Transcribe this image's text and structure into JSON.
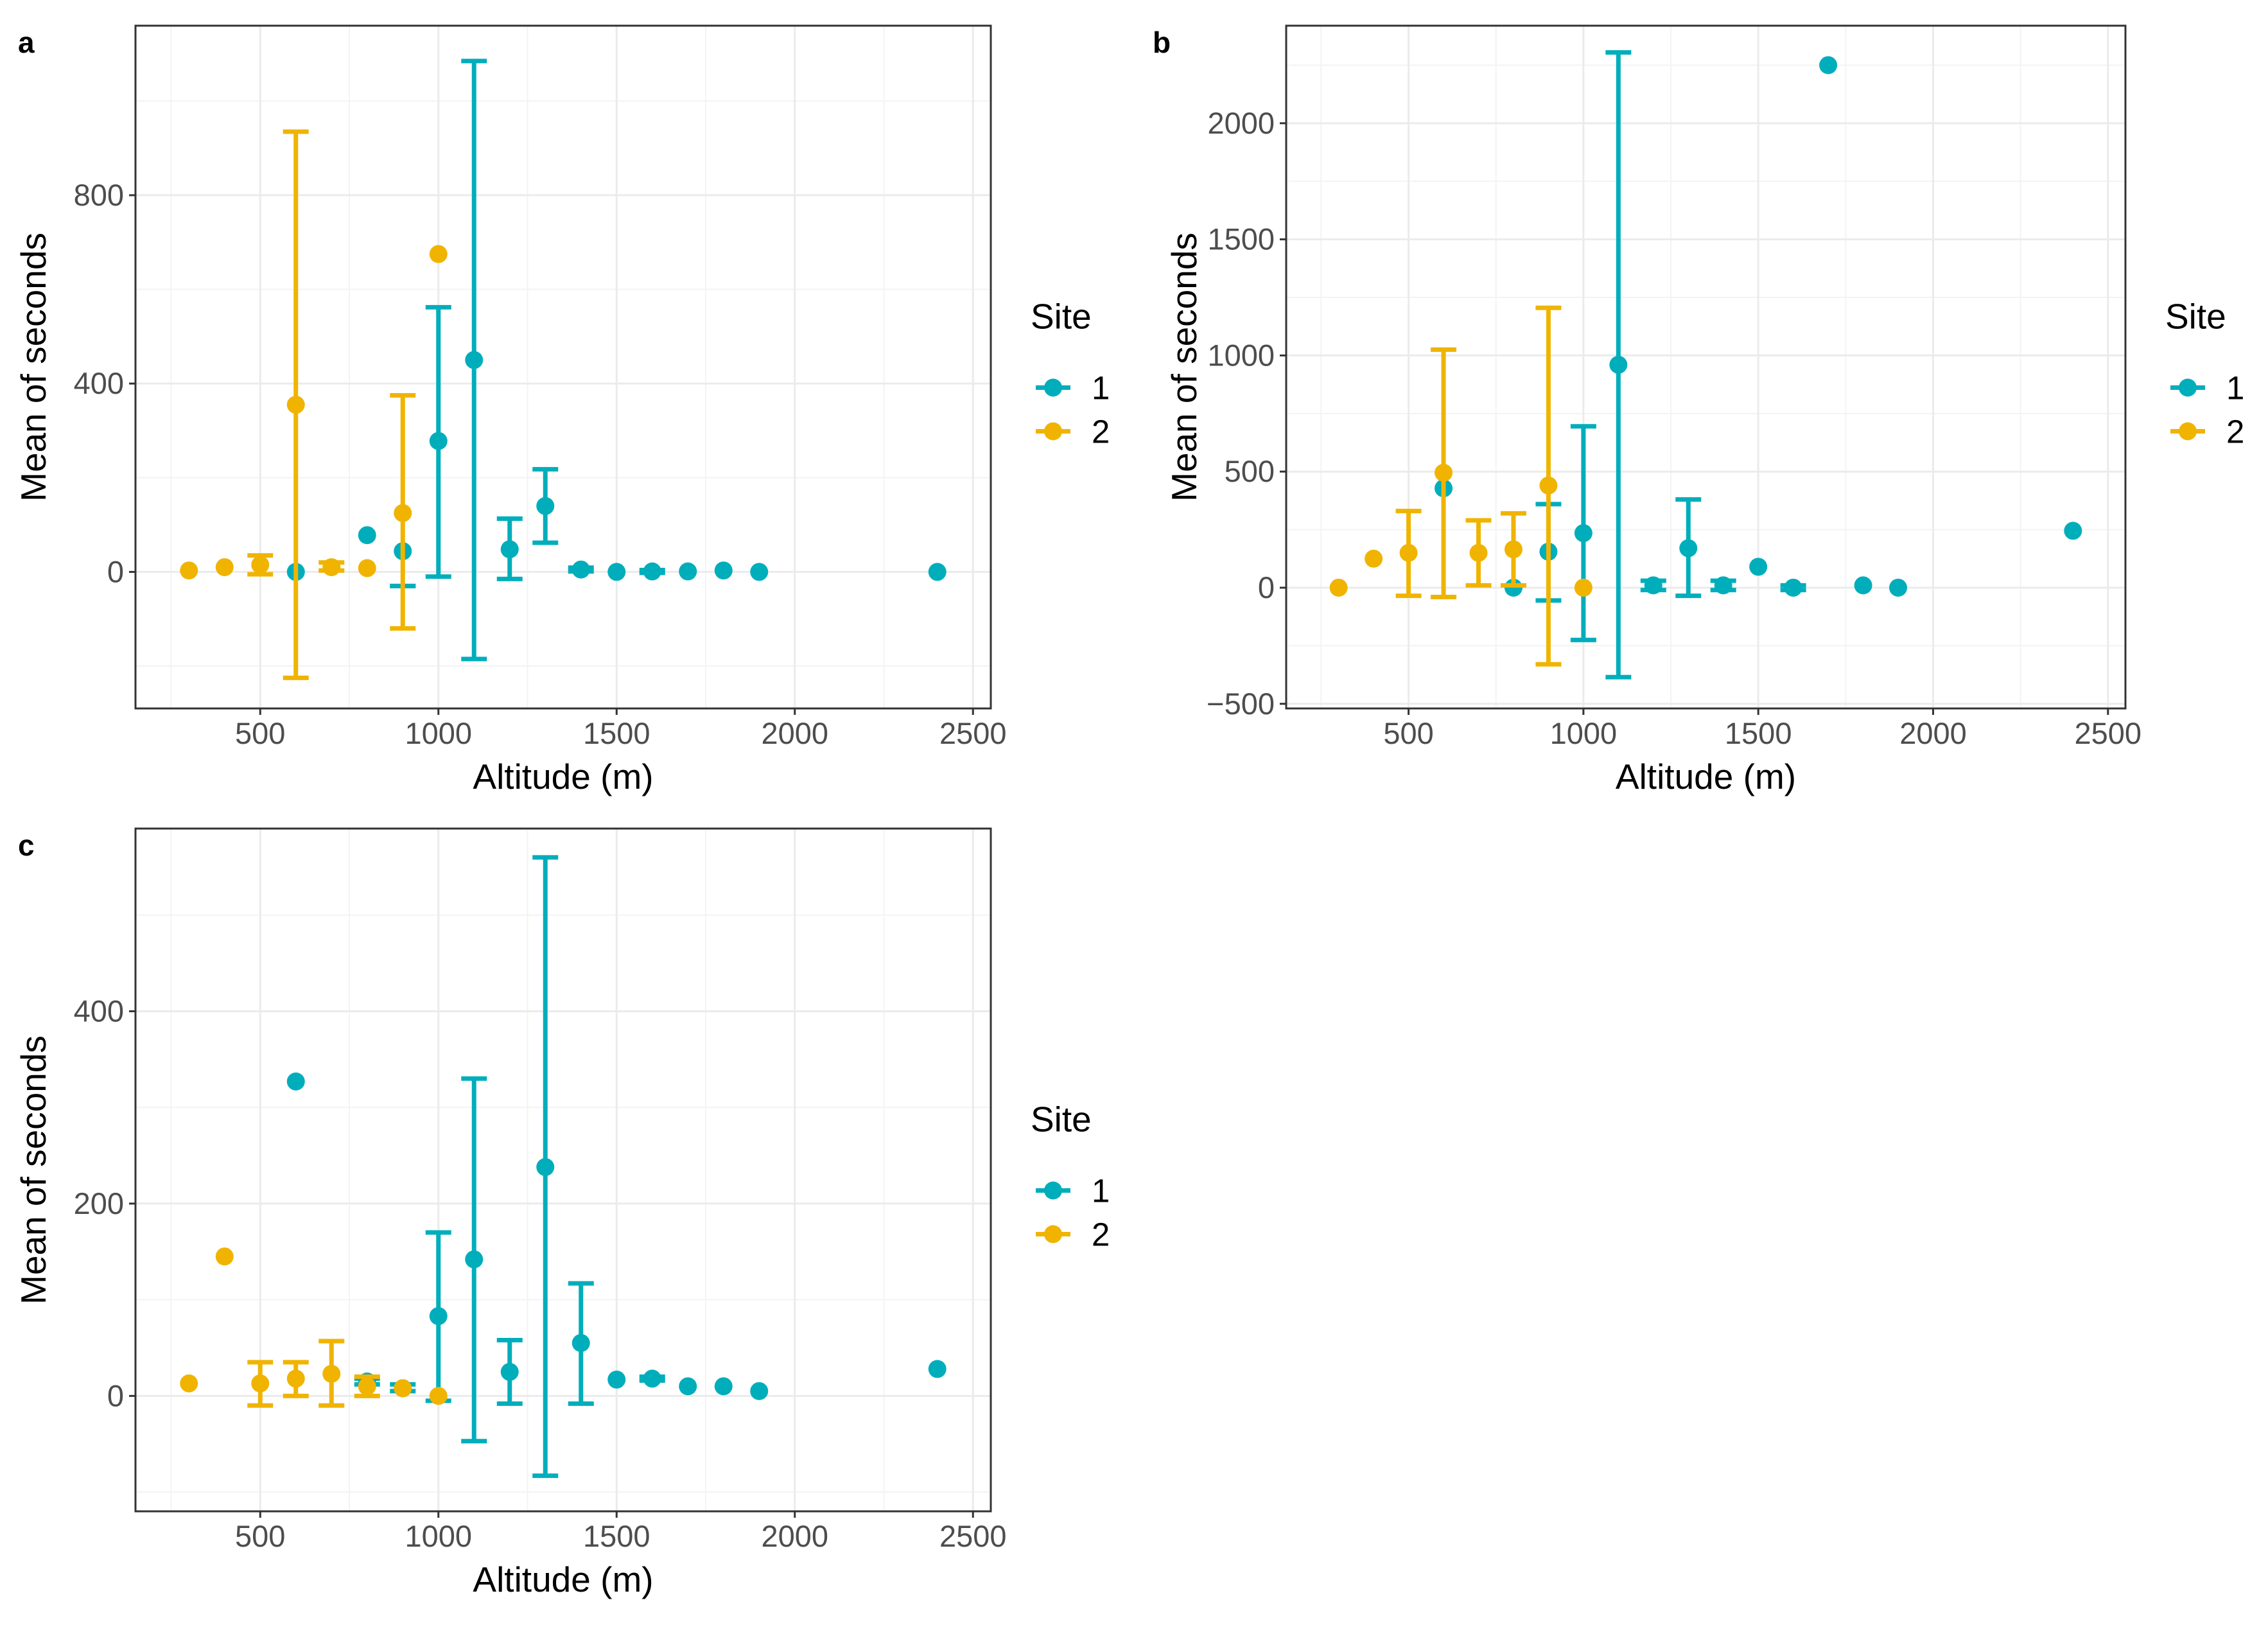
{
  "colors": {
    "site1": "#00AEBB",
    "site2": "#F0B400"
  },
  "chart_data": [
    {
      "panel_label": "a",
      "type": "scatter",
      "xlabel": "Altitude (m)",
      "ylabel": "Mean of seconds",
      "xlim": [
        150,
        2550
      ],
      "ylim": [
        -290,
        1160
      ],
      "x_ticks": [
        500,
        1000,
        1500,
        2000,
        2500
      ],
      "y_ticks": [
        0,
        400,
        800
      ],
      "grid": true,
      "legend": {
        "title": "Site",
        "position": "right",
        "entries": [
          "1",
          "2"
        ]
      },
      "series": [
        {
          "name": "1",
          "color": "site1",
          "points": [
            {
              "x": 600,
              "y": 0
            },
            {
              "x": 800,
              "y": 78
            },
            {
              "x": 900,
              "y": 44,
              "lo": -30,
              "hi": -30
            },
            {
              "x": 1000,
              "y": 278,
              "lo": -10,
              "hi": 562
            },
            {
              "x": 1100,
              "y": 450,
              "lo": -185,
              "hi": 1085
            },
            {
              "x": 1200,
              "y": 48,
              "lo": -15,
              "hi": 113
            },
            {
              "x": 1300,
              "y": 140,
              "lo": 62,
              "hi": 218
            },
            {
              "x": 1400,
              "y": 5,
              "lo": 1,
              "hi": 9
            },
            {
              "x": 1500,
              "y": 0
            },
            {
              "x": 1600,
              "y": 1,
              "lo": -2,
              "hi": 4
            },
            {
              "x": 1700,
              "y": 1
            },
            {
              "x": 1800,
              "y": 3
            },
            {
              "x": 1900,
              "y": 0
            },
            {
              "x": 2400,
              "y": 0
            }
          ]
        },
        {
          "name": "2",
          "color": "site2",
          "points": [
            {
              "x": 300,
              "y": 3
            },
            {
              "x": 400,
              "y": 10
            },
            {
              "x": 500,
              "y": 15,
              "lo": -5,
              "hi": 35
            },
            {
              "x": 600,
              "y": 355,
              "lo": -225,
              "hi": 935
            },
            {
              "x": 700,
              "y": 10,
              "lo": 3,
              "hi": 20
            },
            {
              "x": 800,
              "y": 8
            },
            {
              "x": 900,
              "y": 125,
              "lo": -120,
              "hi": 375
            },
            {
              "x": 1000,
              "y": 675
            }
          ]
        }
      ]
    },
    {
      "panel_label": "b",
      "type": "scatter",
      "xlabel": "Altitude (m)",
      "ylabel": "Mean of seconds",
      "xlim": [
        150,
        2550
      ],
      "ylim": [
        -520,
        2420
      ],
      "x_ticks": [
        500,
        1000,
        1500,
        2000,
        2500
      ],
      "y_ticks": [
        -500,
        0,
        500,
        1000,
        1500,
        2000
      ],
      "grid": true,
      "legend": {
        "title": "Site",
        "position": "right",
        "entries": [
          "1",
          "2"
        ]
      },
      "series": [
        {
          "name": "1",
          "color": "site1",
          "points": [
            {
              "x": 600,
              "y": 428
            },
            {
              "x": 800,
              "y": 0
            },
            {
              "x": 900,
              "y": 155,
              "lo": -55,
              "hi": 360
            },
            {
              "x": 1000,
              "y": 235,
              "lo": -225,
              "hi": 695
            },
            {
              "x": 1100,
              "y": 960,
              "lo": -385,
              "hi": 2305
            },
            {
              "x": 1200,
              "y": 10,
              "lo": -10,
              "hi": 30
            },
            {
              "x": 1300,
              "y": 170,
              "lo": -35,
              "hi": 380
            },
            {
              "x": 1400,
              "y": 10,
              "lo": -10,
              "hi": 30
            },
            {
              "x": 1500,
              "y": 90
            },
            {
              "x": 1600,
              "y": 0,
              "lo": -10,
              "hi": 10
            },
            {
              "x": 1700,
              "y": 2250
            },
            {
              "x": 1800,
              "y": 10
            },
            {
              "x": 1900,
              "y": 0
            },
            {
              "x": 2400,
              "y": 245
            }
          ]
        },
        {
          "name": "2",
          "color": "site2",
          "points": [
            {
              "x": 300,
              "y": 0
            },
            {
              "x": 400,
              "y": 125
            },
            {
              "x": 500,
              "y": 150,
              "lo": -35,
              "hi": 330
            },
            {
              "x": 600,
              "y": 495,
              "lo": -40,
              "hi": 1025
            },
            {
              "x": 700,
              "y": 150,
              "lo": 10,
              "hi": 290
            },
            {
              "x": 800,
              "y": 165,
              "lo": 10,
              "hi": 320
            },
            {
              "x": 900,
              "y": 440,
              "lo": -330,
              "hi": 1205
            },
            {
              "x": 1000,
              "y": 0
            }
          ]
        }
      ]
    },
    {
      "panel_label": "c",
      "type": "scatter",
      "xlabel": "Altitude (m)",
      "ylabel": "Mean of seconds",
      "xlim": [
        150,
        2550
      ],
      "ylim": [
        -120,
        590
      ],
      "x_ticks": [
        500,
        1000,
        1500,
        2000,
        2500
      ],
      "y_ticks": [
        0,
        200,
        400
      ],
      "grid": true,
      "legend": {
        "title": "Site",
        "position": "right",
        "entries": [
          "1",
          "2"
        ]
      },
      "series": [
        {
          "name": "1",
          "color": "site1",
          "points": [
            {
              "x": 600,
              "y": 327
            },
            {
              "x": 800,
              "y": 15,
              "lo": 12,
              "hi": 18
            },
            {
              "x": 900,
              "y": 8,
              "lo": 5,
              "hi": 12
            },
            {
              "x": 1000,
              "y": 83,
              "lo": -5,
              "hi": 170
            },
            {
              "x": 1100,
              "y": 142,
              "lo": -47,
              "hi": 330
            },
            {
              "x": 1200,
              "y": 25,
              "lo": -8,
              "hi": 58
            },
            {
              "x": 1300,
              "y": 238,
              "lo": -83,
              "hi": 560
            },
            {
              "x": 1400,
              "y": 55,
              "lo": -8,
              "hi": 117
            },
            {
              "x": 1500,
              "y": 17
            },
            {
              "x": 1600,
              "y": 18,
              "lo": 16,
              "hi": 20
            },
            {
              "x": 1700,
              "y": 10
            },
            {
              "x": 1800,
              "y": 10
            },
            {
              "x": 1900,
              "y": 5
            },
            {
              "x": 2400,
              "y": 28
            }
          ]
        },
        {
          "name": "2",
          "color": "site2",
          "points": [
            {
              "x": 300,
              "y": 13
            },
            {
              "x": 400,
              "y": 145
            },
            {
              "x": 500,
              "y": 13,
              "lo": -10,
              "hi": 35
            },
            {
              "x": 600,
              "y": 18,
              "lo": 0,
              "hi": 35
            },
            {
              "x": 700,
              "y": 23,
              "lo": -10,
              "hi": 57
            },
            {
              "x": 800,
              "y": 10,
              "lo": 0,
              "hi": 20
            },
            {
              "x": 900,
              "y": 8
            },
            {
              "x": 1000,
              "y": 0
            }
          ]
        }
      ]
    }
  ]
}
